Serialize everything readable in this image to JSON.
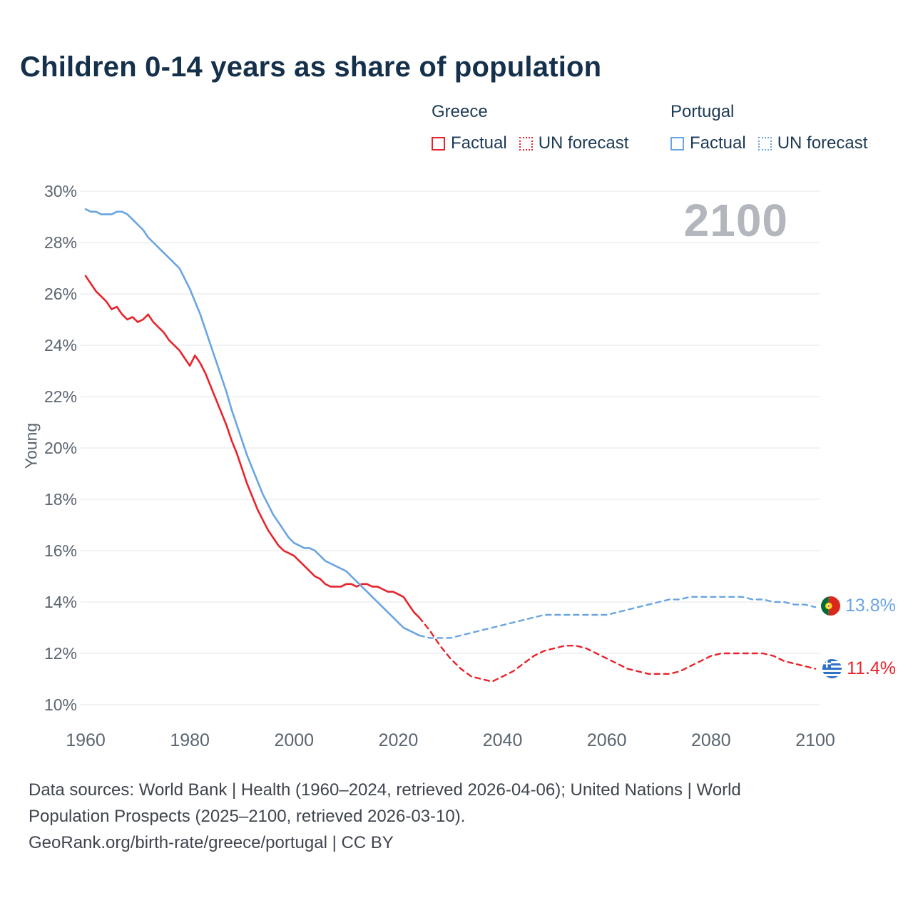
{
  "title": "Children 0-14 years as share of population",
  "watermark": "2100",
  "legend": {
    "greece": "Greece",
    "portugal": "Portugal",
    "factual": "Factual",
    "forecast": "UN forecast"
  },
  "end_labels": {
    "portugal_value": "13.8%",
    "greece_value": "11.4%"
  },
  "footer": {
    "line1": "Data sources: World Bank | Health (1960–2024, retrieved 2026-04-06); United Nations | World",
    "line2": "Population Prospects (2025–2100, retrieved 2026-03-10).",
    "line3": "GeoRank.org/birth-rate/greece/portugal | CC BY"
  },
  "colors": {
    "greece": "#e8232b",
    "portugal": "#6aa5e2",
    "title": "#15304b",
    "legend_text": "#1d3a55",
    "axis_text": "#5b6570",
    "grid": "#e9ebee",
    "watermark": "#b3b7bd",
    "footer_text": "#3f454e"
  },
  "chart_data": {
    "type": "line",
    "title": "Children 0-14 years as share of population",
    "xlabel": "",
    "ylabel": "Young",
    "xlim": [
      1960,
      2100
    ],
    "ylim": [
      10,
      30
    ],
    "grid": "horizontal",
    "legend_position": "top-right",
    "yticks": [
      10,
      12,
      14,
      16,
      18,
      20,
      22,
      24,
      26,
      28,
      30
    ],
    "ytick_suffix": "%",
    "xticks": [
      1960,
      1980,
      2000,
      2020,
      2040,
      2060,
      2080,
      2100
    ],
    "series": [
      {
        "name": "Greece Factual",
        "color_key": "greece",
        "style": "solid",
        "x": [
          1960,
          1961,
          1962,
          1963,
          1964,
          1965,
          1966,
          1967,
          1968,
          1969,
          1970,
          1971,
          1972,
          1973,
          1974,
          1975,
          1976,
          1977,
          1978,
          1979,
          1980,
          1981,
          1982,
          1983,
          1984,
          1985,
          1986,
          1987,
          1988,
          1989,
          1990,
          1991,
          1992,
          1993,
          1994,
          1995,
          1996,
          1997,
          1998,
          1999,
          2000,
          2001,
          2002,
          2003,
          2004,
          2005,
          2006,
          2007,
          2008,
          2009,
          2010,
          2011,
          2012,
          2013,
          2014,
          2015,
          2016,
          2017,
          2018,
          2019,
          2020,
          2021,
          2022,
          2023,
          2024
        ],
        "y": [
          26.7,
          26.4,
          26.1,
          25.9,
          25.7,
          25.4,
          25.5,
          25.2,
          25.0,
          25.1,
          24.9,
          25.0,
          25.2,
          24.9,
          24.7,
          24.5,
          24.2,
          24.0,
          23.8,
          23.5,
          23.2,
          23.6,
          23.3,
          22.9,
          22.4,
          21.9,
          21.4,
          20.9,
          20.3,
          19.8,
          19.2,
          18.6,
          18.1,
          17.6,
          17.2,
          16.8,
          16.5,
          16.2,
          16.0,
          15.9,
          15.8,
          15.6,
          15.4,
          15.2,
          15.0,
          14.9,
          14.7,
          14.6,
          14.6,
          14.6,
          14.7,
          14.7,
          14.6,
          14.7,
          14.7,
          14.6,
          14.6,
          14.5,
          14.4,
          14.4,
          14.3,
          14.2,
          13.9,
          13.6,
          13.4
        ]
      },
      {
        "name": "Greece UN forecast",
        "color_key": "greece",
        "style": "dashed",
        "x": [
          2024,
          2026,
          2028,
          2030,
          2032,
          2034,
          2036,
          2038,
          2040,
          2042,
          2044,
          2046,
          2048,
          2050,
          2052,
          2054,
          2056,
          2058,
          2060,
          2062,
          2064,
          2066,
          2068,
          2070,
          2072,
          2074,
          2076,
          2078,
          2080,
          2082,
          2084,
          2086,
          2088,
          2090,
          2092,
          2094,
          2096,
          2098,
          2100
        ],
        "y": [
          13.4,
          12.9,
          12.3,
          11.8,
          11.4,
          11.1,
          11.0,
          10.9,
          11.1,
          11.3,
          11.6,
          11.9,
          12.1,
          12.2,
          12.3,
          12.3,
          12.2,
          12.0,
          11.8,
          11.6,
          11.4,
          11.3,
          11.2,
          11.2,
          11.2,
          11.3,
          11.5,
          11.7,
          11.9,
          12.0,
          12.0,
          12.0,
          12.0,
          12.0,
          11.9,
          11.7,
          11.6,
          11.5,
          11.4
        ]
      },
      {
        "name": "Portugal Factual",
        "color_key": "portugal",
        "style": "solid",
        "x": [
          1960,
          1961,
          1962,
          1963,
          1964,
          1965,
          1966,
          1967,
          1968,
          1969,
          1970,
          1971,
          1972,
          1973,
          1974,
          1975,
          1976,
          1977,
          1978,
          1979,
          1980,
          1981,
          1982,
          1983,
          1984,
          1985,
          1986,
          1987,
          1988,
          1989,
          1990,
          1991,
          1992,
          1993,
          1994,
          1995,
          1996,
          1997,
          1998,
          1999,
          2000,
          2001,
          2002,
          2003,
          2004,
          2005,
          2006,
          2007,
          2008,
          2009,
          2010,
          2011,
          2012,
          2013,
          2014,
          2015,
          2016,
          2017,
          2018,
          2019,
          2020,
          2021,
          2022,
          2023,
          2024
        ],
        "y": [
          29.3,
          29.2,
          29.2,
          29.1,
          29.1,
          29.1,
          29.2,
          29.2,
          29.1,
          28.9,
          28.7,
          28.5,
          28.2,
          28.0,
          27.8,
          27.6,
          27.4,
          27.2,
          27.0,
          26.6,
          26.2,
          25.7,
          25.2,
          24.6,
          24.0,
          23.4,
          22.8,
          22.2,
          21.5,
          20.9,
          20.3,
          19.7,
          19.2,
          18.7,
          18.2,
          17.8,
          17.4,
          17.1,
          16.8,
          16.5,
          16.3,
          16.2,
          16.1,
          16.1,
          16.0,
          15.8,
          15.6,
          15.5,
          15.4,
          15.3,
          15.2,
          15.0,
          14.8,
          14.6,
          14.4,
          14.2,
          14.0,
          13.8,
          13.6,
          13.4,
          13.2,
          13.0,
          12.9,
          12.8,
          12.7
        ]
      },
      {
        "name": "Portugal UN forecast",
        "color_key": "portugal",
        "style": "dashed",
        "x": [
          2024,
          2026,
          2028,
          2030,
          2032,
          2034,
          2036,
          2038,
          2040,
          2042,
          2044,
          2046,
          2048,
          2050,
          2052,
          2054,
          2056,
          2058,
          2060,
          2062,
          2064,
          2066,
          2068,
          2070,
          2072,
          2074,
          2076,
          2078,
          2080,
          2082,
          2084,
          2086,
          2088,
          2090,
          2092,
          2094,
          2096,
          2098,
          2100
        ],
        "y": [
          12.7,
          12.6,
          12.6,
          12.6,
          12.7,
          12.8,
          12.9,
          13.0,
          13.1,
          13.2,
          13.3,
          13.4,
          13.5,
          13.5,
          13.5,
          13.5,
          13.5,
          13.5,
          13.5,
          13.6,
          13.7,
          13.8,
          13.9,
          14.0,
          14.1,
          14.1,
          14.2,
          14.2,
          14.2,
          14.2,
          14.2,
          14.2,
          14.1,
          14.1,
          14.0,
          14.0,
          13.9,
          13.9,
          13.8
        ]
      }
    ]
  }
}
